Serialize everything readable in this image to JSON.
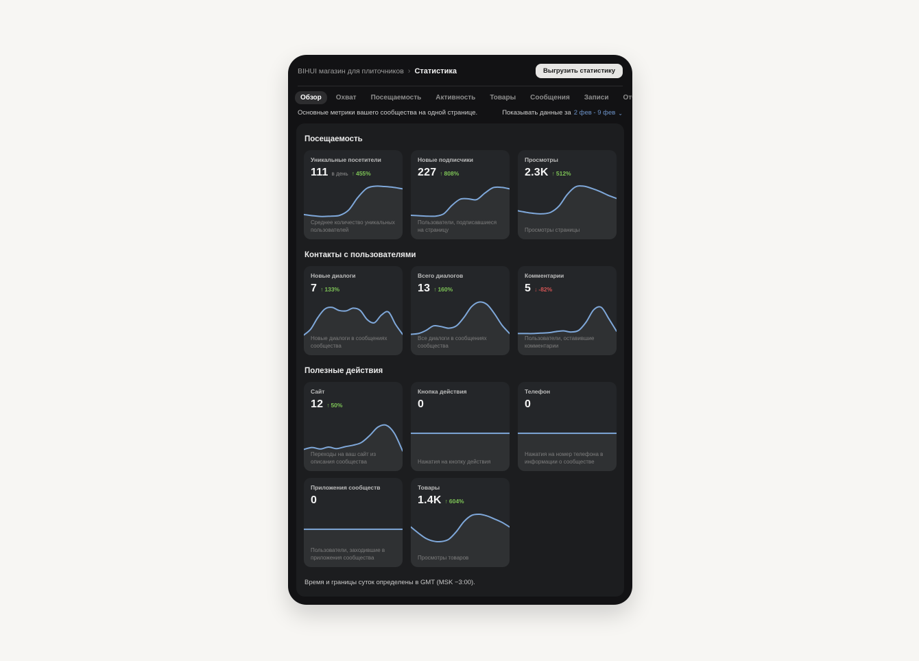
{
  "header": {
    "community_name": "BIHUI магазин для плиточников",
    "separator": "›",
    "page_title": "Статистика",
    "export_button": "Выгрузить статистику"
  },
  "tabs": [
    {
      "label": "Обзор",
      "active": true
    },
    {
      "label": "Охват",
      "active": false
    },
    {
      "label": "Посещаемость",
      "active": false
    },
    {
      "label": "Активность",
      "active": false
    },
    {
      "label": "Товары",
      "active": false
    },
    {
      "label": "Сообщения",
      "active": false
    },
    {
      "label": "Записи",
      "active": false
    },
    {
      "label": "Отчёты",
      "active": false
    }
  ],
  "subheader": {
    "description": "Основные метрики вашего сообщества на одной странице.",
    "period_label": "Показывать данные за",
    "period_value": "2 фев - 9 фев",
    "chevron": "⌄"
  },
  "sections": [
    {
      "title": "Посещаемость",
      "cards": [
        {
          "title": "Уникальные посетители",
          "value": "111",
          "suffix": "в день",
          "arrow": "↑",
          "delta": "455%",
          "caption": "Среднее количество уникальных пользователей",
          "spark": [
            0.18,
            0.15,
            0.13,
            0.14,
            0.16,
            0.3,
            0.62,
            0.86,
            0.92,
            0.91,
            0.89,
            0.85
          ]
        },
        {
          "title": "Новые подписчики",
          "value": "227",
          "arrow": "↑",
          "delta": "808%",
          "caption": "Пользователи, подписавшиеся на страницу",
          "spark": [
            0.16,
            0.15,
            0.14,
            0.14,
            0.2,
            0.42,
            0.58,
            0.59,
            0.57,
            0.74,
            0.88,
            0.89,
            0.85
          ]
        },
        {
          "title": "Просмотры",
          "value": "2.3K",
          "arrow": "↑",
          "delta": "512%",
          "caption": "Просмотры страницы",
          "spark": [
            0.28,
            0.24,
            0.21,
            0.2,
            0.24,
            0.4,
            0.7,
            0.9,
            0.92,
            0.86,
            0.78,
            0.68,
            0.6
          ]
        }
      ]
    },
    {
      "title": "Контакты с пользователями",
      "cards": [
        {
          "title": "Новые диалоги",
          "value": "7",
          "arrow": "↑",
          "delta": "133%",
          "caption": "Новые диалоги в сообщениях сообщества",
          "spark": [
            0.06,
            0.22,
            0.52,
            0.74,
            0.78,
            0.7,
            0.69,
            0.76,
            0.7,
            0.46,
            0.38,
            0.58,
            0.66,
            0.34,
            0.08
          ]
        },
        {
          "title": "Всего диалогов",
          "value": "13",
          "arrow": "↑",
          "delta": "160%",
          "caption": "Все диалоги в сообщениях сообщества",
          "spark": [
            0.08,
            0.1,
            0.18,
            0.3,
            0.28,
            0.24,
            0.3,
            0.52,
            0.8,
            0.92,
            0.86,
            0.62,
            0.32,
            0.1
          ]
        },
        {
          "title": "Комментарии",
          "value": "5",
          "arrow": "↓",
          "delta": "-82%",
          "caption": "Пользователи, оставившие комментарии",
          "spark": [
            0.1,
            0.1,
            0.1,
            0.11,
            0.12,
            0.15,
            0.17,
            0.14,
            0.18,
            0.4,
            0.72,
            0.78,
            0.48,
            0.16
          ]
        }
      ]
    },
    {
      "title": "Полезные действия",
      "cards": [
        {
          "title": "Сайт",
          "value": "12",
          "arrow": "↑",
          "delta": "50%",
          "caption": "Переходы на ваш сайт из описания сообщества",
          "spark": [
            0.1,
            0.15,
            0.11,
            0.16,
            0.12,
            0.17,
            0.21,
            0.28,
            0.46,
            0.68,
            0.73,
            0.52,
            0.06
          ]
        },
        {
          "title": "Кнопка действия",
          "value": "0",
          "caption": "Нажатия на кнопку действия",
          "spark": [
            0.52,
            0.52
          ]
        },
        {
          "title": "Телефон",
          "value": "0",
          "caption": "Нажатия на номер телефона в информации о сообществе",
          "spark": [
            0.52,
            0.52
          ]
        },
        {
          "title": "Приложения сообществ",
          "value": "0",
          "caption": "Пользователи, заходившие в приложения сообщества",
          "spark": [
            0.52,
            0.52
          ]
        },
        {
          "title": "Товары",
          "value": "1.4K",
          "arrow": "↑",
          "delta": "604%",
          "caption": "Просмотры товаров",
          "spark": [
            0.58,
            0.42,
            0.28,
            0.21,
            0.2,
            0.26,
            0.46,
            0.72,
            0.88,
            0.91,
            0.87,
            0.79,
            0.7,
            0.58
          ]
        }
      ]
    }
  ],
  "footer": {
    "note": "Время и границы суток определены в GMT (MSK −3:00)."
  },
  "colors": {
    "spark_line": "#7fa8da",
    "spark_fill": "rgba(255,255,255,0.05)",
    "positive": "#7dc356",
    "negative": "#d35454",
    "link": "#6d93c9"
  }
}
